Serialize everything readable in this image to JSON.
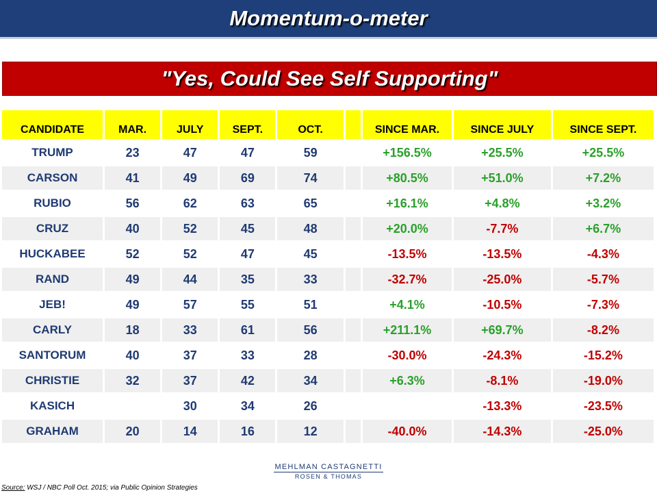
{
  "title": "Momentum-o-meter",
  "subtitle": "\"Yes, Could See Self Supporting\"",
  "colors": {
    "title_bg": "#1f3f7a",
    "band_bg": "#c00000",
    "header_bg": "#ffff00",
    "positive": "#2aa02a",
    "negative": "#c00000",
    "candidate_text": "#1f3a72"
  },
  "columns": [
    "CANDIDATE",
    "MAR.",
    "JULY",
    "SEPT.",
    "OCT.",
    "",
    "SINCE  MAR.",
    "SINCE  JULY",
    "SINCE  SEPT."
  ],
  "rows": [
    [
      "TRUMP",
      "23",
      "47",
      "47",
      "59",
      "",
      "+156.5%",
      "+25.5%",
      "+25.5%"
    ],
    [
      "CARSON",
      "41",
      "49",
      "69",
      "74",
      "",
      "+80.5%",
      "+51.0%",
      "+7.2%"
    ],
    [
      "RUBIO",
      "56",
      "62",
      "63",
      "65",
      "",
      "+16.1%",
      "+4.8%",
      "+3.2%"
    ],
    [
      "CRUZ",
      "40",
      "52",
      "45",
      "48",
      "",
      "+20.0%",
      "-7.7%",
      "+6.7%"
    ],
    [
      "HUCKABEE",
      "52",
      "52",
      "47",
      "45",
      "",
      "-13.5%",
      "-13.5%",
      "-4.3%"
    ],
    [
      "RAND",
      "49",
      "44",
      "35",
      "33",
      "",
      "-32.7%",
      "-25.0%",
      "-5.7%"
    ],
    [
      "JEB!",
      "49",
      "57",
      "55",
      "51",
      "",
      "+4.1%",
      "-10.5%",
      "-7.3%"
    ],
    [
      "CARLY",
      "18",
      "33",
      "61",
      "56",
      "",
      "+211.1%",
      "+69.7%",
      "-8.2%"
    ],
    [
      "SANTORUM",
      "40",
      "37",
      "33",
      "28",
      "",
      "-30.0%",
      "-24.3%",
      "-15.2%"
    ],
    [
      "CHRISTIE",
      "32",
      "37",
      "42",
      "34",
      "",
      "+6.3%",
      "-8.1%",
      "-19.0%"
    ],
    [
      "KASICH",
      "",
      "30",
      "34",
      "26",
      "",
      "",
      "-13.3%",
      "-23.5%"
    ],
    [
      "GRAHAM",
      "20",
      "14",
      "16",
      "12",
      "",
      "-40.0%",
      "-14.3%",
      "-25.0%"
    ]
  ],
  "logo": {
    "line1": "MEHLMAN CASTAGNETTI",
    "line2": "ROSEN & THOMAS"
  },
  "source": {
    "label": "Source:",
    "text": " WSJ / NBC Poll Oct. 2015; via Public Opinion Strategies"
  }
}
